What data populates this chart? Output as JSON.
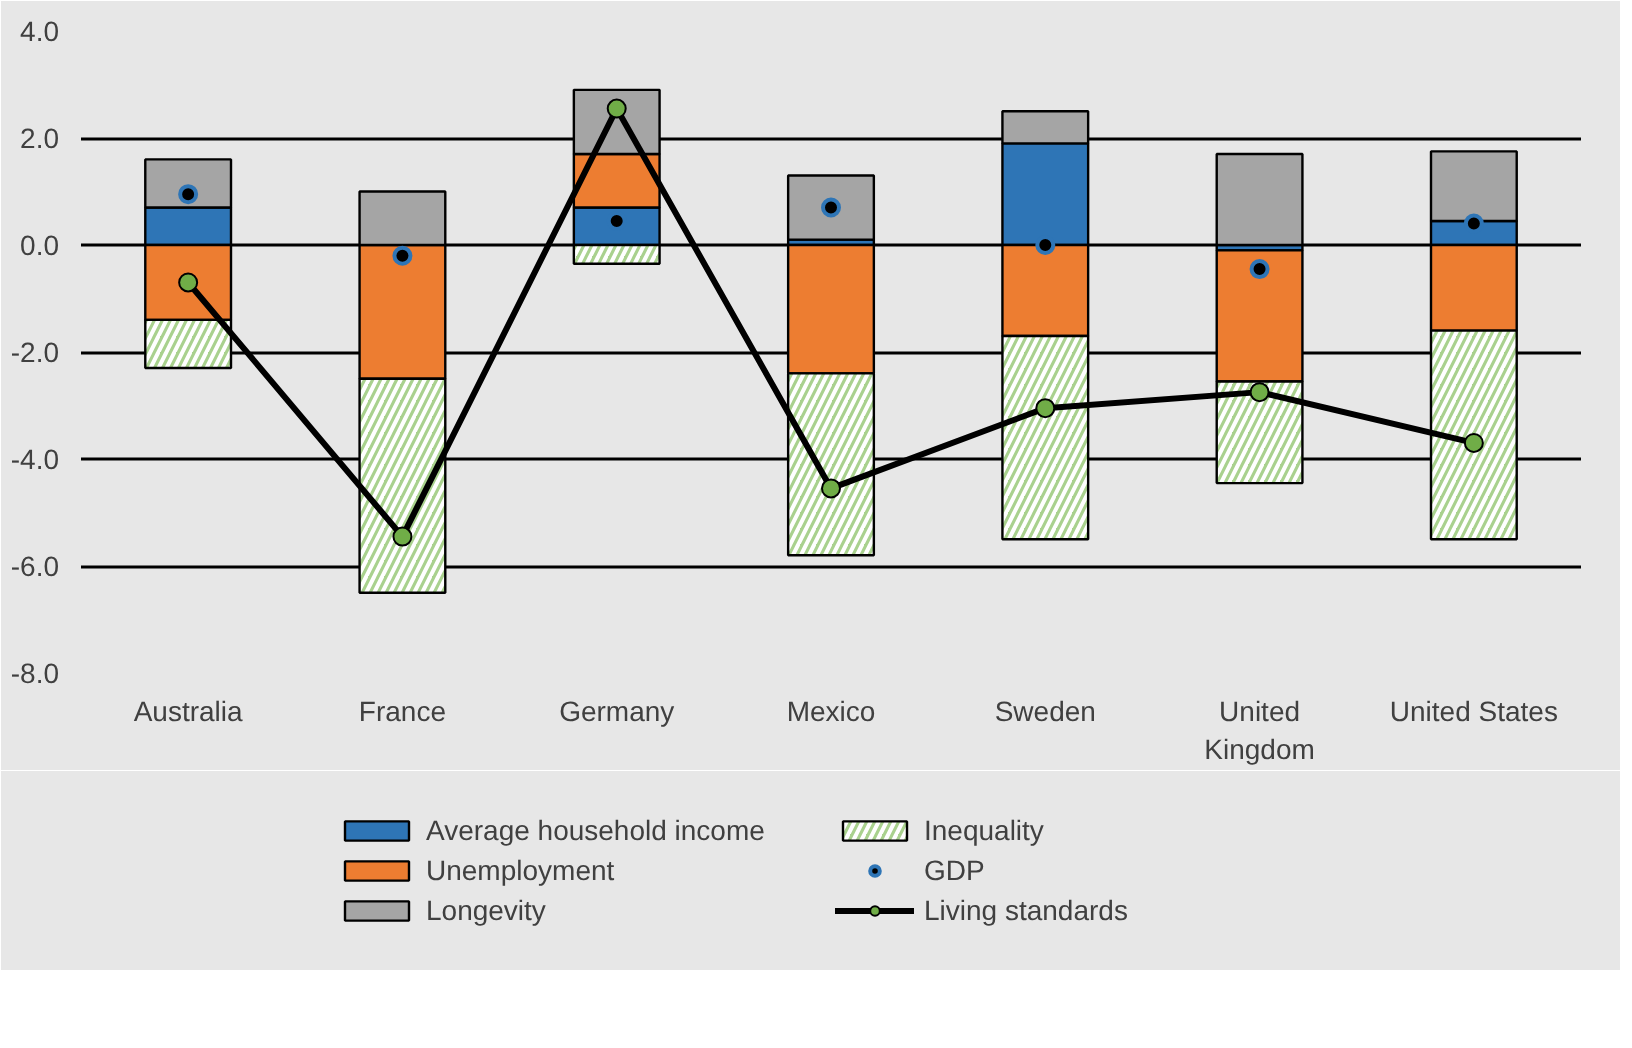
{
  "chart_data": {
    "type": "bar",
    "stacked": true,
    "categories": [
      "Australia",
      "France",
      "Germany",
      "Mexico",
      "Sweden",
      "United Kingdom",
      "United States"
    ],
    "series": [
      {
        "name": "Average household income",
        "color": "#2e75b6",
        "values": [
          0.7,
          0.0,
          0.7,
          0.1,
          1.9,
          -0.1,
          0.45
        ]
      },
      {
        "name": "Unemployment",
        "color": "#ed7d31",
        "values": [
          -1.4,
          -2.5,
          1.0,
          -2.4,
          -1.7,
          -2.45,
          -1.6
        ]
      },
      {
        "name": "Longevity",
        "color": "#a5a5a5",
        "values": [
          0.9,
          1.0,
          1.2,
          1.2,
          0.6,
          1.7,
          1.3
        ]
      },
      {
        "name": "Inequality",
        "color": "#a9d18e",
        "values": [
          -0.9,
          -4.0,
          -0.35,
          -3.4,
          -3.8,
          -1.9,
          -3.9
        ]
      },
      {
        "name": "GDP",
        "type": "scatter",
        "color": "#000000",
        "values": [
          0.95,
          -0.2,
          0.45,
          0.7,
          0.0,
          -0.45,
          0.4
        ]
      },
      {
        "name": "Living standards",
        "type": "line",
        "marker": "circle",
        "color": "#000000",
        "values": [
          -0.7,
          -5.45,
          2.55,
          -4.55,
          -3.05,
          -2.75,
          -3.7
        ]
      }
    ],
    "ylim": [
      -8,
      4
    ],
    "yticks": [
      {
        "value": -8,
        "label": "-8.0"
      },
      {
        "value": -6,
        "label": "-6.0"
      },
      {
        "value": -4,
        "label": "-4.0"
      },
      {
        "value": -2,
        "label": "-2.0"
      },
      {
        "value": 0,
        "label": "0.0"
      },
      {
        "value": 2,
        "label": "2.0"
      },
      {
        "value": 4,
        "label": "4.0"
      }
    ],
    "grid": "y",
    "legend": "bottom"
  }
}
